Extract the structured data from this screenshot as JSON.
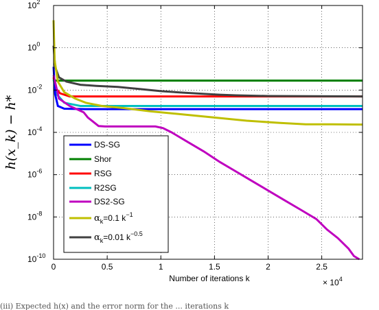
{
  "figure": {
    "caption_fragment": "(iii) Expected h(x) and the error norm for the ... iterations k"
  },
  "chart_data": {
    "type": "line",
    "xlabel": "Number of iterations k",
    "x_multiplier_label": "× 10",
    "x_multiplier_exp": "4",
    "ylabel": "h(x_k) − h*",
    "xlim": [
      0,
      28800
    ],
    "ylim_log10": [
      -10,
      2
    ],
    "yscale": "log",
    "grid": true,
    "legend_position": "lower-left",
    "x_ticks": [
      {
        "value": 0,
        "label": "0"
      },
      {
        "value": 5000,
        "label": "0.5"
      },
      {
        "value": 10000,
        "label": "1"
      },
      {
        "value": 15000,
        "label": "1.5"
      },
      {
        "value": 20000,
        "label": "2"
      },
      {
        "value": 25000,
        "label": "2.5"
      }
    ],
    "y_ticks": [
      {
        "exp": 2,
        "label": "10",
        "sup": "2"
      },
      {
        "exp": 0,
        "label": "10",
        "sup": "0"
      },
      {
        "exp": -2,
        "label": "10",
        "sup": "-2"
      },
      {
        "exp": -4,
        "label": "10",
        "sup": "-4"
      },
      {
        "exp": -6,
        "label": "10",
        "sup": "-6"
      },
      {
        "exp": -8,
        "label": "10",
        "sup": "-8"
      },
      {
        "exp": -10,
        "label": "10",
        "sup": "-10"
      }
    ],
    "series": [
      {
        "name": "DS-SG",
        "color": "#0000ff",
        "points": [
          [
            0,
            -0.9
          ],
          [
            150,
            -2.2
          ],
          [
            400,
            -2.75
          ],
          [
            1000,
            -2.88
          ],
          [
            3000,
            -2.9
          ],
          [
            28800,
            -2.9
          ]
        ]
      },
      {
        "name": "Shor",
        "color": "#008000",
        "points": [
          [
            0,
            -1.5
          ],
          [
            150,
            -1.55
          ],
          [
            28800,
            -1.55
          ]
        ]
      },
      {
        "name": "RSG",
        "color": "#ff0000",
        "points": [
          [
            0,
            -1.4
          ],
          [
            200,
            -1.9
          ],
          [
            600,
            -2.15
          ],
          [
            1500,
            -2.3
          ],
          [
            28800,
            -2.3
          ]
        ]
      },
      {
        "name": "R2SG",
        "color": "#00bfbf",
        "points": [
          [
            0,
            -1.5
          ],
          [
            300,
            -2.2
          ],
          [
            1000,
            -2.6
          ],
          [
            2500,
            -2.75
          ],
          [
            28800,
            -2.75
          ]
        ]
      },
      {
        "name": "DS2-SG",
        "color": "#bf00bf",
        "points": [
          [
            0,
            -1.3
          ],
          [
            500,
            -2.4
          ],
          [
            1500,
            -2.75
          ],
          [
            2800,
            -3.05
          ],
          [
            3200,
            -3.3
          ],
          [
            3700,
            -3.5
          ],
          [
            4200,
            -3.7
          ],
          [
            4800,
            -3.72
          ],
          [
            9500,
            -3.72
          ],
          [
            10200,
            -3.8
          ],
          [
            11000,
            -4.0
          ],
          [
            12500,
            -4.45
          ],
          [
            14000,
            -4.9
          ],
          [
            15500,
            -5.4
          ],
          [
            17000,
            -5.85
          ],
          [
            18500,
            -6.3
          ],
          [
            20000,
            -6.75
          ],
          [
            21500,
            -7.2
          ],
          [
            23000,
            -7.65
          ],
          [
            24500,
            -8.1
          ],
          [
            25500,
            -8.6
          ],
          [
            26500,
            -9.0
          ],
          [
            27500,
            -9.5
          ],
          [
            28000,
            -9.85
          ],
          [
            28500,
            -10.0
          ]
        ]
      },
      {
        "name": "α_k=0.1 k^−1",
        "color": "#bfbf00",
        "points": [
          [
            0,
            1.3
          ],
          [
            100,
            -0.6
          ],
          [
            400,
            -1.6
          ],
          [
            1000,
            -2.1
          ],
          [
            2000,
            -2.4
          ],
          [
            3000,
            -2.6
          ],
          [
            4500,
            -2.75
          ],
          [
            6500,
            -2.85
          ],
          [
            9000,
            -3.0
          ],
          [
            12000,
            -3.15
          ],
          [
            15000,
            -3.3
          ],
          [
            18000,
            -3.45
          ],
          [
            21000,
            -3.55
          ],
          [
            23500,
            -3.62
          ],
          [
            26000,
            -3.62
          ],
          [
            28800,
            -3.63
          ]
        ]
      },
      {
        "name": "α_k=0.01 k^−0.5",
        "color": "#404040",
        "points": [
          [
            0,
            0.1
          ],
          [
            150,
            -0.9
          ],
          [
            500,
            -1.4
          ],
          [
            1200,
            -1.6
          ],
          [
            2500,
            -1.75
          ],
          [
            4000,
            -1.8
          ],
          [
            6000,
            -1.85
          ],
          [
            8000,
            -1.95
          ],
          [
            10000,
            -2.05
          ],
          [
            12000,
            -2.12
          ],
          [
            14000,
            -2.18
          ],
          [
            15500,
            -2.22
          ],
          [
            17000,
            -2.25
          ],
          [
            20000,
            -2.28
          ],
          [
            28800,
            -2.3
          ]
        ]
      }
    ]
  },
  "legend": {
    "items": [
      {
        "text": "DS-SG",
        "color": "#0000ff"
      },
      {
        "text": "Shor",
        "color": "#008000"
      },
      {
        "text": "RSG",
        "color": "#ff0000"
      },
      {
        "text": "R2SG",
        "color": "#00bfbf"
      },
      {
        "text": "DS2-SG",
        "color": "#bf00bf"
      },
      {
        "text": "",
        "color": "#bfbf00",
        "alpha": "α",
        "sub": "k",
        "eq": "=0.1 k",
        "sup": "−1"
      },
      {
        "text": "",
        "color": "#404040",
        "alpha": "α",
        "sub": "k",
        "eq": "=0.01 k",
        "sup": "−0.5"
      }
    ]
  }
}
